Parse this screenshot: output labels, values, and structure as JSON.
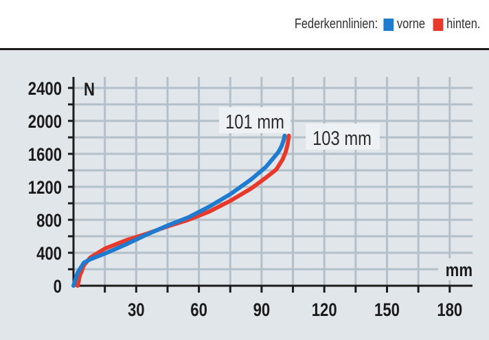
{
  "legend": {
    "title": "Federkennlinien:",
    "entries": [
      {
        "label": "vorne",
        "color": "#1f7bcf"
      },
      {
        "label": "hinten.",
        "color": "#e8392b"
      }
    ]
  },
  "chart_data": {
    "type": "line",
    "title": "Federkennlinien",
    "xlabel": "mm",
    "ylabel": "N",
    "xlim": [
      0,
      185
    ],
    "ylim": [
      0,
      2400
    ],
    "x_ticks": [
      30,
      60,
      90,
      120,
      150,
      180
    ],
    "y_ticks": [
      0,
      400,
      800,
      1200,
      1600,
      2000,
      2400
    ],
    "grid": true,
    "grid_x_step": 15,
    "grid_y_step": 200,
    "series": [
      {
        "name": "vorne",
        "color": "#1f7bcf",
        "x": [
          0,
          2,
          5,
          8,
          15,
          25,
          35,
          45,
          55,
          65,
          75,
          85,
          92,
          96,
          98,
          99.5,
          100.5,
          101
        ],
        "y": [
          0,
          160,
          280,
          320,
          390,
          500,
          620,
          730,
          830,
          960,
          1110,
          1290,
          1440,
          1560,
          1620,
          1690,
          1760,
          1820
        ]
      },
      {
        "name": "hinten",
        "color": "#e8392b",
        "x": [
          2,
          3,
          5,
          8,
          15,
          25,
          35,
          45,
          55,
          65,
          75,
          85,
          92,
          97,
          100,
          101.5,
          102.5,
          103
        ],
        "y": [
          0,
          120,
          250,
          340,
          450,
          550,
          630,
          720,
          800,
          900,
          1030,
          1180,
          1310,
          1410,
          1530,
          1620,
          1720,
          1820
        ]
      }
    ],
    "annotations": [
      {
        "text": "101 mm",
        "series": "vorne"
      },
      {
        "text": "103 mm",
        "series": "hinten"
      }
    ]
  }
}
